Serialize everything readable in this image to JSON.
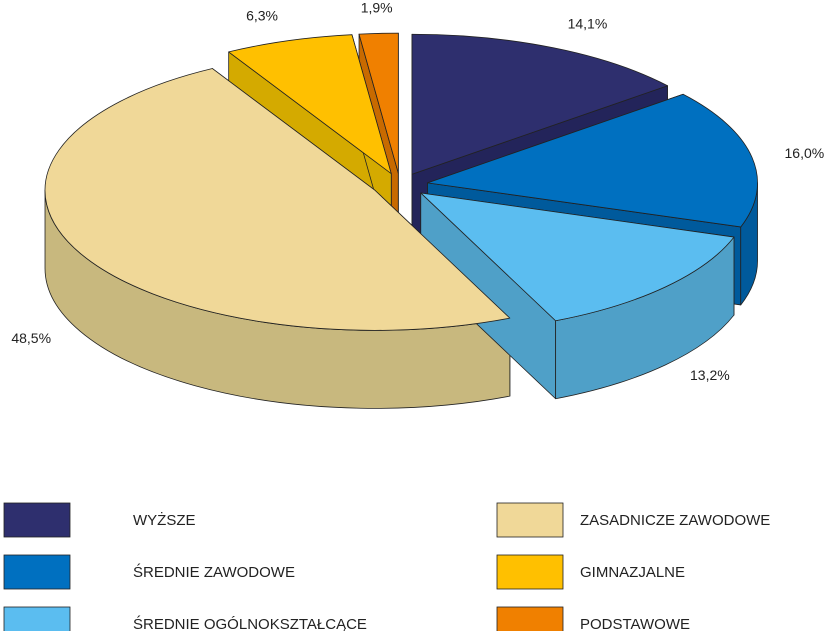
{
  "chart_data": {
    "type": "pie3d",
    "categories": [
      "WYŻSZE",
      "ŚREDNIE ZAWODOWE",
      "ŚREDNIE OGÓLNOKSZTAŁCĄCE",
      "ZASADNICZE ZAWODOWE",
      "GIMNAZJALNE",
      "PODSTAWOWE"
    ],
    "values": [
      14.1,
      16.0,
      13.2,
      48.5,
      6.3,
      1.9
    ],
    "value_labels": [
      "14,1%",
      "16,0%",
      "13,2%",
      "48,5%",
      "6,3%",
      "1,9%"
    ],
    "colors": [
      "#2e2f6e",
      "#0070c0",
      "#5bbdf0",
      "#f0d898",
      "#ffc000",
      "#f08000"
    ],
    "side_colors": [
      "#23245a",
      "#005a9c",
      "#4fa0c8",
      "#c8b87e",
      "#d4aa00",
      "#c86a00"
    ]
  }
}
